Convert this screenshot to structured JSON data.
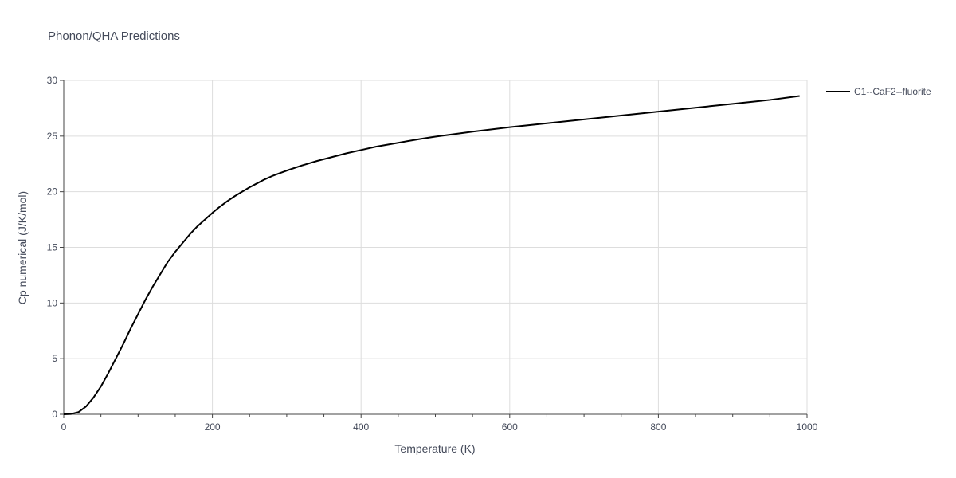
{
  "chart_data": {
    "type": "line",
    "title": "Phonon/QHA Predictions",
    "xlabel": "Temperature (K)",
    "ylabel": "Cp numerical (J/K/mol)",
    "xlim": [
      0,
      1000
    ],
    "ylim": [
      0,
      30
    ],
    "x_ticks": [
      0,
      200,
      400,
      600,
      800,
      1000
    ],
    "x_tick_labels": [
      "0",
      "200",
      "400",
      "600",
      "800",
      "1000"
    ],
    "x_minor_ticks": [
      50,
      100,
      150,
      250,
      300,
      350,
      450,
      500,
      550,
      650,
      700,
      750,
      850,
      900,
      950
    ],
    "y_ticks": [
      0,
      5,
      10,
      15,
      20,
      25,
      30
    ],
    "y_tick_labels": [
      "0",
      "5",
      "10",
      "15",
      "20",
      "25",
      "30"
    ],
    "grid": true,
    "legend_position": "top-right-outside",
    "series": [
      {
        "name": "C1--CaF2--fluorite",
        "color": "#000000",
        "x": [
          0,
          10,
          20,
          30,
          40,
          50,
          60,
          70,
          80,
          90,
          100,
          110,
          120,
          130,
          140,
          150,
          160,
          170,
          180,
          190,
          200,
          210,
          220,
          230,
          240,
          250,
          260,
          270,
          280,
          290,
          300,
          320,
          340,
          360,
          380,
          400,
          420,
          450,
          480,
          500,
          550,
          600,
          650,
          700,
          750,
          800,
          850,
          900,
          950,
          990
        ],
        "y": [
          0,
          0.03,
          0.2,
          0.7,
          1.5,
          2.5,
          3.7,
          5.0,
          6.3,
          7.7,
          9.0,
          10.3,
          11.5,
          12.6,
          13.7,
          14.6,
          15.4,
          16.2,
          16.9,
          17.5,
          18.1,
          18.65,
          19.15,
          19.6,
          20.0,
          20.4,
          20.75,
          21.1,
          21.4,
          21.65,
          21.9,
          22.35,
          22.75,
          23.1,
          23.45,
          23.75,
          24.05,
          24.4,
          24.75,
          24.95,
          25.4,
          25.8,
          26.15,
          26.5,
          26.85,
          27.2,
          27.55,
          27.9,
          28.25,
          28.6
        ]
      }
    ]
  }
}
